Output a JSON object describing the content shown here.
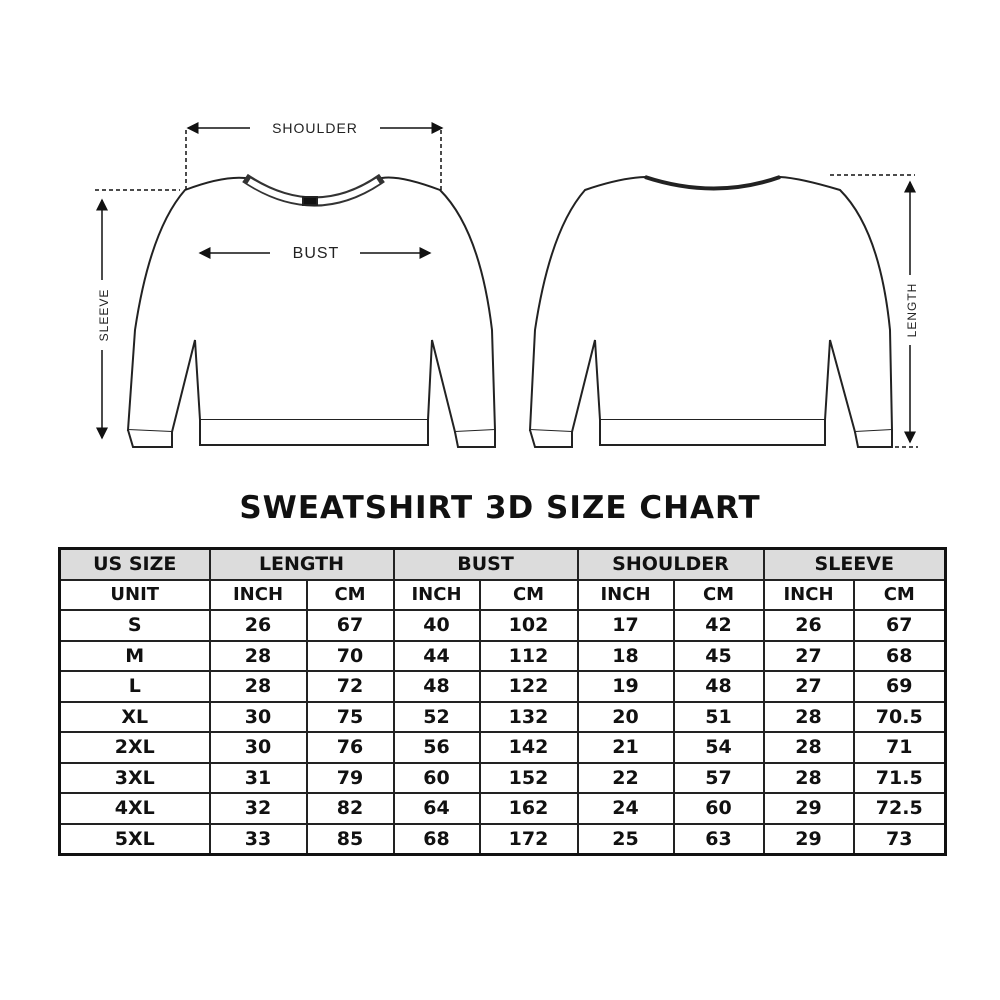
{
  "diagram": {
    "labels": {
      "shoulder": "SHOULDER",
      "bust": "BUST",
      "sleeve": "SLEEVE",
      "length": "LENGTH"
    }
  },
  "title": "SWEATSHIRT 3D SIZE CHART",
  "table": {
    "groups": [
      "US SIZE",
      "LENGTH",
      "BUST",
      "SHOULDER",
      "SLEEVE"
    ],
    "units": [
      "UNIT",
      "INCH",
      "CM",
      "INCH",
      "CM",
      "INCH",
      "CM",
      "INCH",
      "CM"
    ],
    "rows": [
      [
        "S",
        "26",
        "67",
        "40",
        "102",
        "17",
        "42",
        "26",
        "67"
      ],
      [
        "M",
        "28",
        "70",
        "44",
        "112",
        "18",
        "45",
        "27",
        "68"
      ],
      [
        "L",
        "28",
        "72",
        "48",
        "122",
        "19",
        "48",
        "27",
        "69"
      ],
      [
        "XL",
        "30",
        "75",
        "52",
        "132",
        "20",
        "51",
        "28",
        "70.5"
      ],
      [
        "2XL",
        "30",
        "76",
        "56",
        "142",
        "21",
        "54",
        "28",
        "71"
      ],
      [
        "3XL",
        "31",
        "79",
        "60",
        "152",
        "22",
        "57",
        "28",
        "71.5"
      ],
      [
        "4XL",
        "32",
        "82",
        "64",
        "162",
        "24",
        "60",
        "29",
        "72.5"
      ],
      [
        "5XL",
        "33",
        "85",
        "68",
        "172",
        "25",
        "63",
        "29",
        "73"
      ]
    ]
  }
}
